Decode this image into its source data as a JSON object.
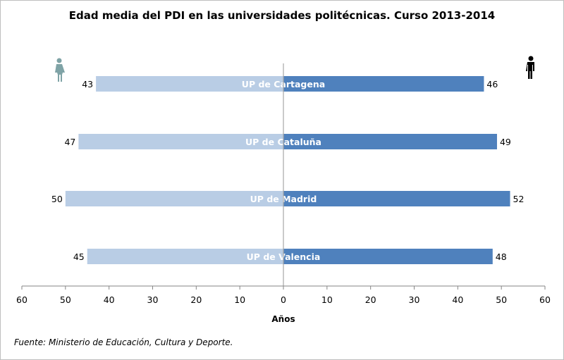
{
  "chart_data": {
    "type": "bar",
    "orientation": "horizontal-butterfly",
    "title": "Edad media del PDI en las universidades politécnicas. Curso 2013-2014",
    "xlabel": "Años",
    "source": "Fuente: Ministerio de Educación, Cultura y Deporte.",
    "categories": [
      "UP de Cartagena",
      "UP de Cataluña",
      "UP de Madrid",
      "UP de Valencia"
    ],
    "series": [
      {
        "key": "female",
        "icon": "female-icon",
        "color": "#b9cde5",
        "side": "left",
        "values": [
          43,
          47,
          50,
          45
        ]
      },
      {
        "key": "male",
        "icon": "male-icon",
        "color": "#4f81bd",
        "side": "right",
        "values": [
          46,
          49,
          52,
          48
        ]
      }
    ],
    "xlim": [
      -60,
      60
    ],
    "ticks": [
      60,
      50,
      40,
      30,
      20,
      10,
      0,
      10,
      20,
      30,
      40,
      50,
      60
    ],
    "grid": false,
    "female_icon_color": "#7fa3a6",
    "male_icon_color": "#000000"
  }
}
